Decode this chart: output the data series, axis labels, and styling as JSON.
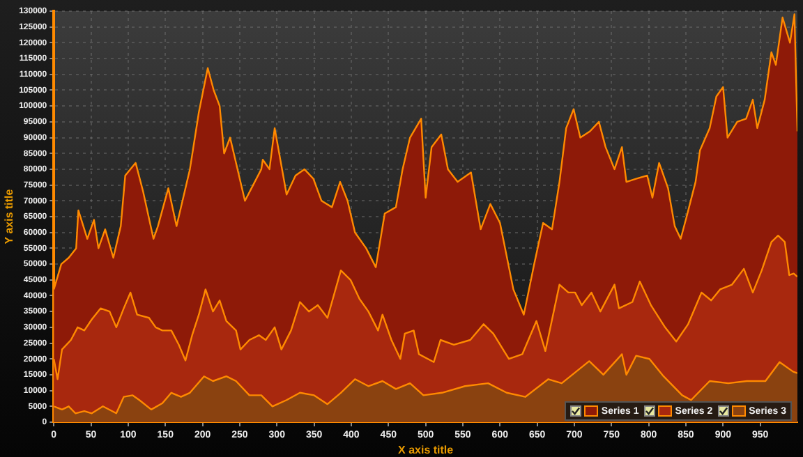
{
  "chart_data": {
    "type": "area",
    "xlabel": "X axis title",
    "ylabel": "Y axis title",
    "xlim": [
      0,
      1000
    ],
    "ylim": [
      0,
      130000
    ],
    "xticks": [
      0,
      50,
      100,
      150,
      200,
      250,
      300,
      350,
      400,
      450,
      500,
      550,
      600,
      650,
      700,
      750,
      800,
      850,
      900,
      950
    ],
    "yticks": [
      0,
      5000,
      10000,
      15000,
      20000,
      25000,
      30000,
      35000,
      40000,
      45000,
      50000,
      55000,
      60000,
      65000,
      70000,
      75000,
      80000,
      85000,
      90000,
      95000,
      100000,
      105000,
      110000,
      115000,
      120000,
      125000,
      130000
    ],
    "grid": true,
    "legend": "bottom right",
    "series": [
      {
        "name": "Series 1",
        "color": "#8e1a08",
        "x": [
          0,
          10,
          20,
          30,
          33,
          45,
          54,
          60,
          69,
          80,
          90,
          96,
          110,
          120,
          134,
          140,
          154,
          165,
          183,
          195,
          207,
          215,
          223,
          229,
          237,
          245,
          257,
          268,
          279,
          281,
          290,
          297,
          313,
          325,
          337,
          349,
          360,
          374,
          385,
          395,
          405,
          420,
          433,
          445,
          460,
          469,
          479,
          494,
          500,
          508,
          521,
          530,
          543,
          561,
          574,
          587,
          600,
          618,
          632,
          646,
          658,
          670,
          680,
          689,
          699,
          708,
          721,
          733,
          742,
          754,
          764,
          770,
          783,
          798,
          805,
          814,
          826,
          835,
          843,
          851,
          863,
          869,
          882,
          891,
          900,
          906,
          919,
          931,
          940,
          946,
          956,
          965,
          971,
          980,
          990,
          996,
          1000
        ],
        "values": [
          42000,
          50000,
          52000,
          55000,
          67000,
          58000,
          64000,
          55000,
          61000,
          52000,
          62000,
          78000,
          82000,
          73000,
          58000,
          62000,
          74000,
          62000,
          80000,
          98000,
          112000,
          105000,
          100000,
          85000,
          90000,
          82000,
          70000,
          75000,
          80000,
          83000,
          80000,
          93000,
          72000,
          78000,
          80000,
          77000,
          70000,
          68000,
          76000,
          70000,
          60000,
          55000,
          49000,
          66000,
          68000,
          80000,
          90000,
          96000,
          71000,
          87000,
          91000,
          80000,
          76000,
          79000,
          61000,
          69000,
          63000,
          42000,
          34000,
          50000,
          63000,
          61000,
          76000,
          93000,
          99000,
          90000,
          92000,
          95000,
          87000,
          80000,
          87000,
          76000,
          77000,
          78000,
          71000,
          82000,
          74000,
          62000,
          58000,
          65000,
          76000,
          86000,
          93000,
          103000,
          106000,
          90000,
          95000,
          96000,
          102000,
          93000,
          102000,
          117000,
          113000,
          128000,
          120000,
          129000,
          92000
        ]
      },
      {
        "name": "Series 2",
        "color": "#a8280e",
        "x": [
          0,
          5,
          11,
          23,
          32,
          41,
          51,
          63,
          75,
          84,
          94,
          103,
          112,
          128,
          137,
          146,
          158,
          168,
          177,
          186,
          195,
          204,
          214,
          223,
          232,
          245,
          251,
          263,
          276,
          285,
          297,
          306,
          319,
          331,
          343,
          355,
          368,
          386,
          399,
          411,
          423,
          436,
          442,
          454,
          466,
          472,
          484,
          491,
          511,
          520,
          538,
          560,
          578,
          591,
          612,
          630,
          649,
          661,
          680,
          692,
          701,
          710,
          723,
          735,
          754,
          760,
          778,
          788,
          803,
          822,
          837,
          853,
          871,
          884,
          896,
          912,
          928,
          940,
          952,
          965,
          974,
          983,
          989,
          995,
          1000
        ],
        "values": [
          20000,
          13600,
          23000,
          26000,
          30000,
          29000,
          32500,
          36000,
          35000,
          30000,
          36000,
          41000,
          34000,
          33000,
          30000,
          29000,
          29000,
          24500,
          19500,
          27500,
          34000,
          42000,
          35000,
          38500,
          32000,
          29000,
          23000,
          26000,
          27500,
          26000,
          30000,
          23000,
          29000,
          38000,
          35000,
          37000,
          33000,
          48000,
          45000,
          39000,
          35000,
          29000,
          34000,
          26000,
          20000,
          28000,
          29000,
          21500,
          19000,
          26000,
          24500,
          26000,
          31000,
          28000,
          20000,
          21500,
          32000,
          22500,
          43500,
          41000,
          41000,
          37000,
          41000,
          35000,
          43500,
          36000,
          38000,
          44500,
          37000,
          30000,
          25500,
          31000,
          41000,
          38500,
          42000,
          43500,
          48500,
          41000,
          48000,
          57000,
          59000,
          57000,
          46500,
          47000,
          46000
        ]
      },
      {
        "name": "Series 3",
        "color": "#8a4210",
        "x": [
          0,
          11,
          20,
          29,
          41,
          51,
          66,
          84,
          94,
          106,
          115,
          131,
          146,
          158,
          171,
          183,
          202,
          214,
          232,
          245,
          263,
          279,
          294,
          313,
          331,
          350,
          368,
          386,
          405,
          423,
          442,
          460,
          479,
          497,
          522,
          553,
          584,
          609,
          634,
          665,
          683,
          720,
          739,
          764,
          770,
          783,
          801,
          820,
          845,
          857,
          882,
          907,
          932,
          957,
          976,
          994,
          1000
        ],
        "values": [
          5000,
          4000,
          5000,
          2800,
          3500,
          2800,
          5000,
          2800,
          8000,
          8500,
          7000,
          4000,
          6000,
          9300,
          8000,
          9300,
          14500,
          13000,
          14500,
          13000,
          8500,
          8500,
          5000,
          7000,
          9300,
          8500,
          5700,
          9300,
          13600,
          11400,
          13000,
          10500,
          12300,
          8500,
          9300,
          11400,
          12300,
          9300,
          8000,
          13600,
          12300,
          19300,
          15000,
          21500,
          15000,
          21000,
          20000,
          14500,
          8500,
          7000,
          13000,
          12300,
          13000,
          13000,
          19000,
          16000,
          15500
        ]
      }
    ]
  }
}
